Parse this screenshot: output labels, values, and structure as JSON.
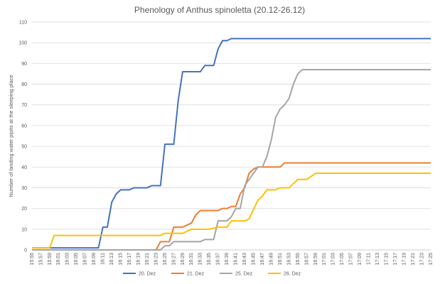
{
  "chart_data": {
    "type": "line",
    "title": "Phenology of Anthus spinoletta (20.12-26.12)",
    "xlabel": "",
    "ylabel": "Number of landing water pipits at the sleeping place",
    "ylim": [
      0,
      110
    ],
    "yticks": [
      0,
      10,
      20,
      30,
      40,
      50,
      60,
      70,
      80,
      90,
      100,
      110
    ],
    "grid": "horizontal",
    "legend_position": "bottom",
    "x_tick_labels": [
      "15:55",
      "15:57",
      "15:59",
      "16:01",
      "16:03",
      "16:05",
      "16:07",
      "16:09",
      "16:11",
      "16:13",
      "16:15",
      "16:17",
      "16:19",
      "16:21",
      "16:23",
      "16:25",
      "16:27",
      "16:29",
      "16:31",
      "16:33",
      "16:35",
      "16:37",
      "16:39",
      "16:41",
      "16:43",
      "16:45",
      "16:47",
      "16:49",
      "16:51",
      "16:53",
      "16:55",
      "16:57",
      "16:59",
      "17:01",
      "17:03",
      "17:05",
      "17:07",
      "17:09",
      "17:11",
      "17:13",
      "17:15",
      "17:17",
      "17:19",
      "17:21",
      "17:23",
      "17:25"
    ],
    "x_start": "15:55",
    "x_end": "17:25",
    "series": [
      {
        "name": "20. Dez",
        "color": "#4472c4",
        "points": [
          [
            "15:55",
            1
          ],
          [
            "16:10",
            1
          ],
          [
            "16:11",
            11
          ],
          [
            "16:12",
            11
          ],
          [
            "16:13",
            23
          ],
          [
            "16:14",
            27
          ],
          [
            "16:15",
            29
          ],
          [
            "16:17",
            29
          ],
          [
            "16:18",
            30
          ],
          [
            "16:21",
            30
          ],
          [
            "16:22",
            31
          ],
          [
            "16:24",
            31
          ],
          [
            "16:25",
            51
          ],
          [
            "16:27",
            51
          ],
          [
            "16:28",
            72
          ],
          [
            "16:29",
            86
          ],
          [
            "16:33",
            86
          ],
          [
            "16:34",
            89
          ],
          [
            "16:36",
            89
          ],
          [
            "16:37",
            97
          ],
          [
            "16:38",
            101
          ],
          [
            "16:39",
            101
          ],
          [
            "16:40",
            102
          ],
          [
            "17:25",
            102
          ]
        ]
      },
      {
        "name": "21. Dez",
        "color": "#ed7d31",
        "points": [
          [
            "15:55",
            0
          ],
          [
            "16:23",
            0
          ],
          [
            "16:24",
            4
          ],
          [
            "16:26",
            4
          ],
          [
            "16:27",
            11
          ],
          [
            "16:29",
            11
          ],
          [
            "16:31",
            13
          ],
          [
            "16:32",
            17
          ],
          [
            "16:33",
            19
          ],
          [
            "16:37",
            19
          ],
          [
            "16:38",
            20
          ],
          [
            "16:39",
            20
          ],
          [
            "16:40",
            21
          ],
          [
            "16:41",
            21
          ],
          [
            "16:42",
            27
          ],
          [
            "16:43",
            30
          ],
          [
            "16:44",
            37
          ],
          [
            "16:45",
            39
          ],
          [
            "16:46",
            40
          ],
          [
            "16:51",
            40
          ],
          [
            "16:52",
            42
          ],
          [
            "17:25",
            42
          ]
        ]
      },
      {
        "name": "25. Dez",
        "color": "#a5a5a5",
        "points": [
          [
            "15:55",
            0
          ],
          [
            "16:24",
            0
          ],
          [
            "16:25",
            2
          ],
          [
            "16:26",
            2
          ],
          [
            "16:27",
            4
          ],
          [
            "16:33",
            4
          ],
          [
            "16:34",
            5
          ],
          [
            "16:36",
            5
          ],
          [
            "16:37",
            14
          ],
          [
            "16:39",
            14
          ],
          [
            "16:40",
            16
          ],
          [
            "16:41",
            20
          ],
          [
            "16:42",
            20
          ],
          [
            "16:43",
            31
          ],
          [
            "16:44",
            34
          ],
          [
            "16:45",
            37
          ],
          [
            "16:46",
            40
          ],
          [
            "16:47",
            40
          ],
          [
            "16:48",
            45
          ],
          [
            "16:49",
            53
          ],
          [
            "16:50",
            64
          ],
          [
            "16:51",
            68
          ],
          [
            "16:52",
            70
          ],
          [
            "16:53",
            73
          ],
          [
            "16:54",
            80
          ],
          [
            "16:55",
            85
          ],
          [
            "16:56",
            87
          ],
          [
            "17:25",
            87
          ]
        ]
      },
      {
        "name": "26. Dez",
        "color": "#ffc000",
        "points": [
          [
            "15:55",
            1
          ],
          [
            "15:59",
            1
          ],
          [
            "16:00",
            7
          ],
          [
            "16:24",
            7
          ],
          [
            "16:25",
            8
          ],
          [
            "16:29",
            8
          ],
          [
            "16:31",
            10
          ],
          [
            "16:35",
            10
          ],
          [
            "16:37",
            11
          ],
          [
            "16:39",
            11
          ],
          [
            "16:40",
            14
          ],
          [
            "16:43",
            14
          ],
          [
            "16:44",
            15
          ],
          [
            "16:46",
            24
          ],
          [
            "16:47",
            26
          ],
          [
            "16:48",
            29
          ],
          [
            "16:50",
            29
          ],
          [
            "16:51",
            30
          ],
          [
            "16:53",
            30
          ],
          [
            "16:55",
            34
          ],
          [
            "16:57",
            34
          ],
          [
            "16:59",
            37
          ],
          [
            "17:25",
            37
          ]
        ]
      }
    ]
  }
}
